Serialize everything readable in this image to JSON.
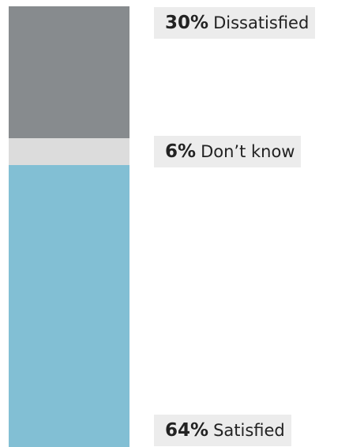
{
  "chart_data": {
    "type": "bar",
    "stacked": true,
    "orientation": "vertical",
    "total": 100,
    "unit": "%",
    "series": [
      {
        "name": "Dissatisfied",
        "value": 30,
        "value_label": "30%",
        "label": "Dissatisfied",
        "color": "#878b8e"
      },
      {
        "name": "Don’t know",
        "value": 6,
        "value_label": "6%",
        "label": "Don’t know",
        "color": "#dcdcdc"
      },
      {
        "name": "Satisfied",
        "value": 64,
        "value_label": "64%",
        "label": "Satisfied",
        "color": "#82bfd4"
      }
    ],
    "label_background": "#ececec"
  }
}
